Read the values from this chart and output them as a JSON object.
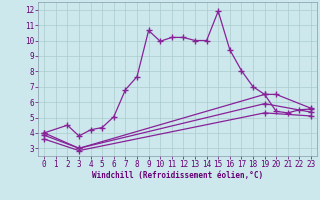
{
  "xlabel": "Windchill (Refroidissement éolien,°C)",
  "background_color": "#cce8ec",
  "grid_color": "#aacccc",
  "line_color": "#882299",
  "xlim": [
    -0.5,
    23.5
  ],
  "ylim": [
    2.5,
    12.5
  ],
  "xticks": [
    0,
    1,
    2,
    3,
    4,
    5,
    6,
    7,
    8,
    9,
    10,
    11,
    12,
    13,
    14,
    15,
    16,
    17,
    18,
    19,
    20,
    21,
    22,
    23
  ],
  "yticks": [
    3,
    4,
    5,
    6,
    7,
    8,
    9,
    10,
    11,
    12
  ],
  "line1_x": [
    0,
    2,
    3,
    4,
    5,
    6,
    7,
    8,
    9,
    10,
    11,
    12,
    13,
    14,
    15,
    16,
    17,
    18,
    19,
    20,
    21,
    22,
    23
  ],
  "line1_y": [
    4.0,
    4.5,
    3.8,
    4.2,
    4.35,
    5.05,
    6.8,
    7.65,
    10.65,
    9.95,
    10.2,
    10.2,
    10.0,
    10.0,
    11.9,
    9.4,
    8.05,
    7.0,
    6.5,
    5.4,
    5.3,
    5.5,
    5.55
  ],
  "line2_x": [
    0,
    3,
    19,
    20,
    23
  ],
  "line2_y": [
    4.0,
    3.0,
    6.5,
    6.5,
    5.6
  ],
  "line3_x": [
    0,
    3,
    19,
    23
  ],
  "line3_y": [
    3.85,
    3.0,
    5.9,
    5.35
  ],
  "line4_x": [
    0,
    3,
    19,
    23
  ],
  "line4_y": [
    3.6,
    2.85,
    5.3,
    5.1
  ]
}
